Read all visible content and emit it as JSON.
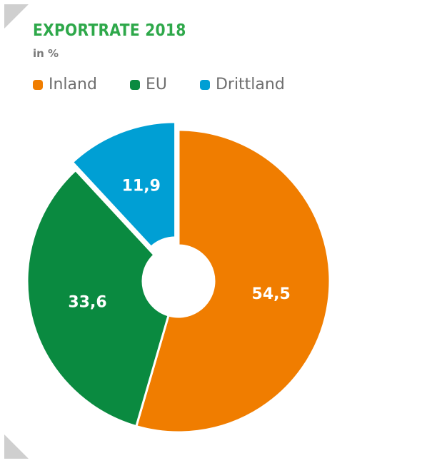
{
  "chart_data": {
    "type": "pie",
    "title": "EXPORTRATE 2018",
    "subtitle": "in %",
    "legend_position": "top-left",
    "categories": [
      "Inland",
      "EU",
      "Drittland"
    ],
    "values": [
      54.5,
      33.6,
      11.9
    ],
    "value_labels": [
      "54,5",
      "33,6",
      "11,9"
    ],
    "colors": [
      "#f07d00",
      "#0a8a40",
      "#009fd4"
    ],
    "donut": true,
    "exploded_slice": "Drittland"
  }
}
